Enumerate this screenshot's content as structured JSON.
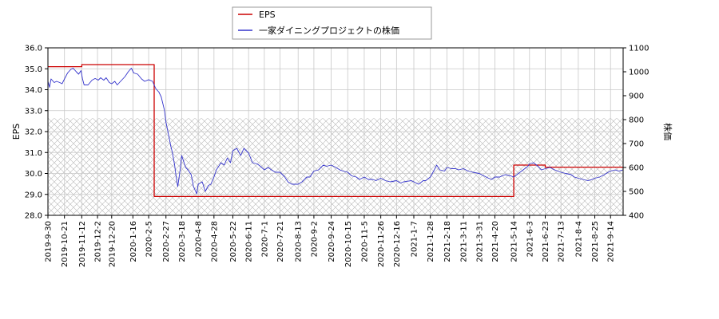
{
  "chart_data": {
    "type": "line",
    "legend": {
      "placement": "top-center",
      "items": [
        "EPS",
        "一家ダイニングプロジェクトの株価"
      ]
    },
    "grid": true,
    "x_labels": [
      "2019-9-30",
      "2019-10-21",
      "2019-11-12",
      "2019-12-2",
      "2019-12-20",
      "2020-1-16",
      "2020-2-5",
      "2020-2-27",
      "2020-3-18",
      "2020-4-8",
      "2020-4-28",
      "2020-5-22",
      "2020-6-11",
      "2020-7-1",
      "2020-7-21",
      "2020-8-13",
      "2020-9-2",
      "2020-9-24",
      "2020-10-15",
      "2020-11-5",
      "2020-11-26",
      "2020-12-16",
      "2021-1-7",
      "2021-1-28",
      "2021-2-18",
      "2021-3-11",
      "2021-3-31",
      "2021-4-20",
      "2021-5-14",
      "2021-6-3",
      "2021-6-23",
      "2021-7-13",
      "2021-8-4",
      "2021-8-25",
      "2021-9-14"
    ],
    "x_range": [
      "2019-9-30",
      "2021-9-30"
    ],
    "y_left": {
      "label": "EPS",
      "range": [
        28.0,
        36.0
      ],
      "ticks": [
        "28.0",
        "29.0",
        "30.0",
        "31.0",
        "32.0",
        "33.0",
        "34.0",
        "35.0",
        "36.0"
      ]
    },
    "y_right": {
      "label": "株価",
      "range": [
        400,
        1100
      ],
      "ticks": [
        "400",
        "500",
        "600",
        "700",
        "800",
        "900",
        "1000",
        "1100"
      ]
    },
    "hatched_band": {
      "axis": "right",
      "range": [
        400,
        806
      ]
    },
    "series": [
      {
        "name": "EPS",
        "axis": "left",
        "color": "#cc0000",
        "step": true,
        "points": [
          [
            "2019-9-30",
            35.1
          ],
          [
            "2019-11-12",
            35.2
          ],
          [
            "2020-2-12",
            28.9
          ],
          [
            "2021-5-14",
            30.4
          ],
          [
            "2021-6-23",
            30.3
          ],
          [
            "2021-9-30",
            30.3
          ]
        ]
      },
      {
        "name": "一家ダイニングプロジェクトの株価",
        "axis": "right",
        "color": "#3333cc",
        "points": [
          [
            "2019-9-30",
            960
          ],
          [
            "2019-10-2",
            935
          ],
          [
            "2019-10-4",
            970
          ],
          [
            "2019-10-8",
            955
          ],
          [
            "2019-10-11",
            960
          ],
          [
            "2019-10-15",
            955
          ],
          [
            "2019-10-18",
            950
          ],
          [
            "2019-10-21",
            970
          ],
          [
            "2019-10-25",
            995
          ],
          [
            "2019-10-29",
            1010
          ],
          [
            "2019-11-1",
            1015
          ],
          [
            "2019-11-5",
            1000
          ],
          [
            "2019-11-8",
            990
          ],
          [
            "2019-11-11",
            1005
          ],
          [
            "2019-11-13",
            970
          ],
          [
            "2019-11-15",
            945
          ],
          [
            "2019-11-20",
            945
          ],
          [
            "2019-11-25",
            965
          ],
          [
            "2019-11-29",
            972
          ],
          [
            "2019-12-3",
            965
          ],
          [
            "2019-12-6",
            975
          ],
          [
            "2019-12-10",
            965
          ],
          [
            "2019-12-13",
            975
          ],
          [
            "2019-12-17",
            955
          ],
          [
            "2019-12-20",
            950
          ],
          [
            "2019-12-24",
            960
          ],
          [
            "2019-12-27",
            945
          ],
          [
            "2020-1-6",
            980
          ],
          [
            "2020-1-10",
            1000
          ],
          [
            "2020-1-14",
            1015
          ],
          [
            "2020-1-17",
            995
          ],
          [
            "2020-1-22",
            990
          ],
          [
            "2020-1-27",
            970
          ],
          [
            "2020-1-31",
            960
          ],
          [
            "2020-2-5",
            967
          ],
          [
            "2020-2-10",
            960
          ],
          [
            "2020-2-14",
            930
          ],
          [
            "2020-2-18",
            915
          ],
          [
            "2020-2-21",
            895
          ],
          [
            "2020-2-25",
            840
          ],
          [
            "2020-2-27",
            790
          ],
          [
            "2020-3-2",
            725
          ],
          [
            "2020-3-4",
            690
          ],
          [
            "2020-3-6",
            665
          ],
          [
            "2020-3-9",
            610
          ],
          [
            "2020-3-11",
            560
          ],
          [
            "2020-3-13",
            520
          ],
          [
            "2020-3-16",
            590
          ],
          [
            "2020-3-18",
            650
          ],
          [
            "2020-3-23",
            600
          ],
          [
            "2020-3-26",
            590
          ],
          [
            "2020-3-30",
            570
          ],
          [
            "2020-4-2",
            520
          ],
          [
            "2020-4-6",
            490
          ],
          [
            "2020-4-8",
            530
          ],
          [
            "2020-4-13",
            540
          ],
          [
            "2020-4-17",
            500
          ],
          [
            "2020-4-21",
            525
          ],
          [
            "2020-4-24",
            530
          ],
          [
            "2020-4-28",
            560
          ],
          [
            "2020-5-1",
            590
          ],
          [
            "2020-5-7",
            620
          ],
          [
            "2020-5-11",
            610
          ],
          [
            "2020-5-15",
            640
          ],
          [
            "2020-5-19",
            620
          ],
          [
            "2020-5-22",
            670
          ],
          [
            "2020-5-27",
            680
          ],
          [
            "2020-6-1",
            650
          ],
          [
            "2020-6-5",
            680
          ],
          [
            "2020-6-11",
            660
          ],
          [
            "2020-6-16",
            620
          ],
          [
            "2020-6-22",
            615
          ],
          [
            "2020-6-26",
            605
          ],
          [
            "2020-7-1",
            590
          ],
          [
            "2020-7-6",
            600
          ],
          [
            "2020-7-10",
            590
          ],
          [
            "2020-7-15",
            580
          ],
          [
            "2020-7-21",
            580
          ],
          [
            "2020-7-27",
            560
          ],
          [
            "2020-7-31",
            540
          ],
          [
            "2020-8-5",
            530
          ],
          [
            "2020-8-13",
            530
          ],
          [
            "2020-8-18",
            540
          ],
          [
            "2020-8-24",
            560
          ],
          [
            "2020-8-28",
            560
          ],
          [
            "2020-9-2",
            585
          ],
          [
            "2020-9-8",
            590
          ],
          [
            "2020-9-14",
            610
          ],
          [
            "2020-9-18",
            605
          ],
          [
            "2020-9-24",
            610
          ],
          [
            "2020-9-30",
            600
          ],
          [
            "2020-10-5",
            590
          ],
          [
            "2020-10-9",
            585
          ],
          [
            "2020-10-15",
            580
          ],
          [
            "2020-10-20",
            565
          ],
          [
            "2020-10-26",
            560
          ],
          [
            "2020-10-30",
            550
          ],
          [
            "2020-11-5",
            560
          ],
          [
            "2020-11-10",
            550
          ],
          [
            "2020-11-16",
            550
          ],
          [
            "2020-11-20",
            545
          ],
          [
            "2020-11-26",
            555
          ],
          [
            "2020-12-2",
            545
          ],
          [
            "2020-12-8",
            540
          ],
          [
            "2020-12-16",
            545
          ],
          [
            "2020-12-21",
            535
          ],
          [
            "2020-12-25",
            540
          ],
          [
            "2021-1-4",
            545
          ],
          [
            "2021-1-7",
            540
          ],
          [
            "2021-1-13",
            530
          ],
          [
            "2021-1-19",
            545
          ],
          [
            "2021-1-22",
            545
          ],
          [
            "2021-1-28",
            560
          ],
          [
            "2021-2-2",
            590
          ],
          [
            "2021-2-5",
            610
          ],
          [
            "2021-2-9",
            590
          ],
          [
            "2021-2-15",
            585
          ],
          [
            "2021-2-18",
            600
          ],
          [
            "2021-2-24",
            595
          ],
          [
            "2021-3-1",
            595
          ],
          [
            "2021-3-5",
            590
          ],
          [
            "2021-3-11",
            595
          ],
          [
            "2021-3-17",
            585
          ],
          [
            "2021-3-23",
            580
          ],
          [
            "2021-3-31",
            575
          ],
          [
            "2021-4-6",
            565
          ],
          [
            "2021-4-12",
            555
          ],
          [
            "2021-4-16",
            550
          ],
          [
            "2021-4-20",
            560
          ],
          [
            "2021-4-26",
            560
          ],
          [
            "2021-5-3",
            570
          ],
          [
            "2021-5-10",
            565
          ],
          [
            "2021-5-14",
            560
          ],
          [
            "2021-5-20",
            575
          ],
          [
            "2021-5-26",
            590
          ],
          [
            "2021-6-1",
            605
          ],
          [
            "2021-6-3",
            615
          ],
          [
            "2021-6-8",
            620
          ],
          [
            "2021-6-14",
            605
          ],
          [
            "2021-6-18",
            590
          ],
          [
            "2021-6-23",
            595
          ],
          [
            "2021-6-29",
            600
          ],
          [
            "2021-7-5",
            590
          ],
          [
            "2021-7-9",
            585
          ],
          [
            "2021-7-13",
            580
          ],
          [
            "2021-7-19",
            575
          ],
          [
            "2021-7-26",
            570
          ],
          [
            "2021-7-30",
            560
          ],
          [
            "2021-8-4",
            555
          ],
          [
            "2021-8-10",
            550
          ],
          [
            "2021-8-16",
            545
          ],
          [
            "2021-8-20",
            548
          ],
          [
            "2021-8-25",
            555
          ],
          [
            "2021-8-31",
            560
          ],
          [
            "2021-9-6",
            570
          ],
          [
            "2021-9-10",
            578
          ],
          [
            "2021-9-14",
            585
          ],
          [
            "2021-9-20",
            590
          ],
          [
            "2021-9-24",
            585
          ],
          [
            "2021-9-30",
            590
          ]
        ]
      }
    ]
  }
}
